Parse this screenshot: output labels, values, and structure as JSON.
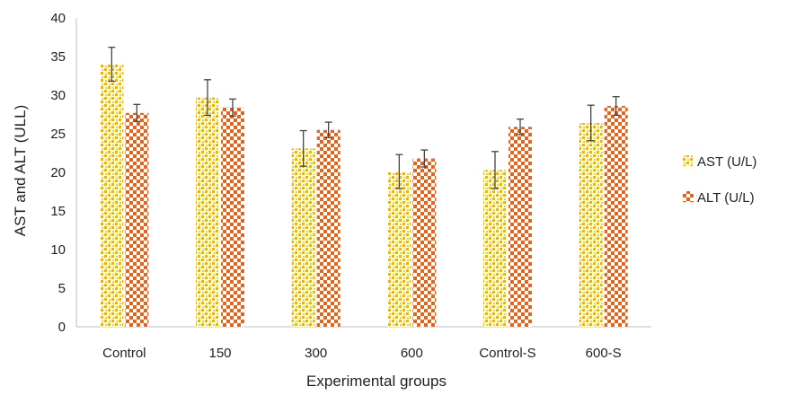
{
  "chart_data": {
    "type": "bar",
    "title": "",
    "xlabel": "Experimental groups",
    "ylabel": "AST and ALT (ULL)",
    "categories": [
      "Control",
      "150",
      "300",
      "600",
      "Control-S",
      "600-S"
    ],
    "ylim": [
      0,
      40
    ],
    "yticks": [
      0,
      5,
      10,
      15,
      20,
      25,
      30,
      35,
      40
    ],
    "grid": false,
    "legend_position": "right",
    "series": [
      {
        "name": "AST (U/L)",
        "values": [
          34.0,
          29.7,
          23.1,
          20.1,
          20.3,
          26.4
        ],
        "errors": [
          2.2,
          2.3,
          2.3,
          2.2,
          2.4,
          2.3
        ],
        "color": "#E8B21C",
        "pattern": "dots"
      },
      {
        "name": "ALT (U/L)",
        "values": [
          27.7,
          28.4,
          25.5,
          21.8,
          25.9,
          28.6
        ],
        "errors": [
          1.1,
          1.1,
          1.0,
          1.1,
          1.0,
          1.2
        ],
        "color": "#E8621A",
        "pattern": "checker"
      }
    ]
  }
}
